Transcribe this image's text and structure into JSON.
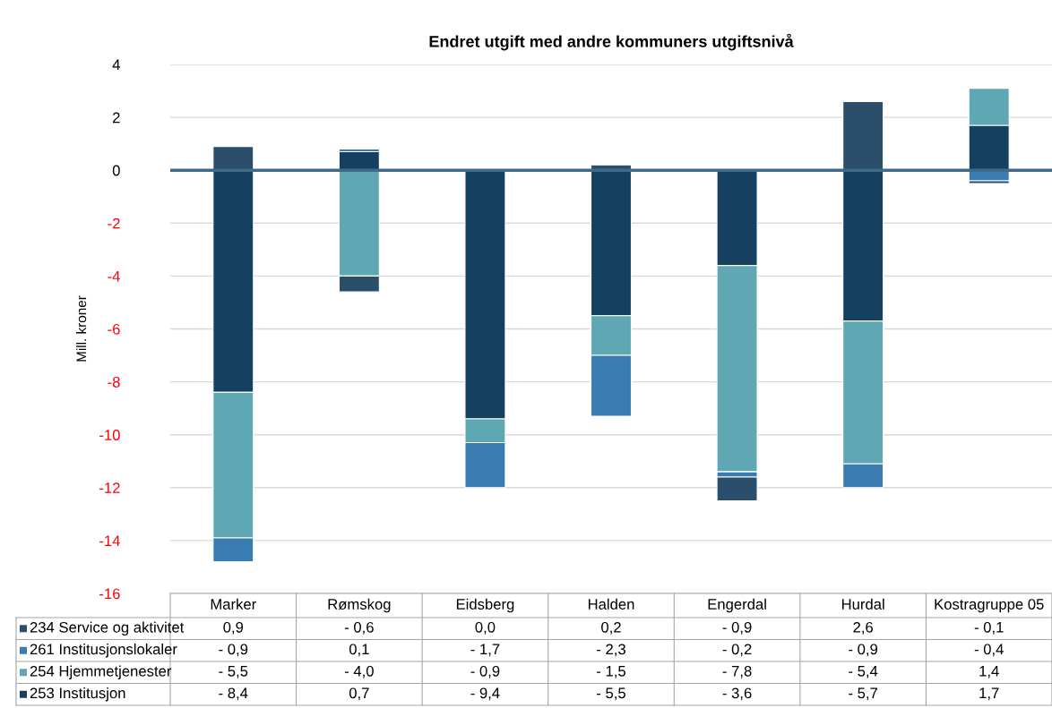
{
  "chart_data": {
    "type": "bar",
    "title": "Endret utgift med andre kommuners utgiftsnivå",
    "ylabel": "Mill. kroner",
    "categories": [
      "Marker",
      "Rømskog",
      "Eidsberg",
      "Halden",
      "Engerdal",
      "Hurdal",
      "Kostragruppe 05"
    ],
    "stacked": true,
    "legend": "bottom left",
    "ref_lines": [
      {
        "axis": "y",
        "value": 0,
        "color": "#3f6a8a"
      }
    ],
    "ylim": [
      -16,
      4
    ],
    "yticks": [
      -16,
      -14,
      -12,
      -10,
      -8,
      -6,
      -4,
      -2,
      0,
      2,
      4
    ],
    "grid": "y",
    "series": [
      {
        "name": "253 Institusjon",
        "color": "#16405f",
        "values": [
          -8.4,
          0.7,
          -9.4,
          -5.5,
          -3.6,
          -5.7,
          1.7
        ],
        "value_labels": [
          "- 8,4",
          "0,7",
          "- 9,4",
          "- 5,5",
          "- 3,6",
          "- 5,7",
          "1,7"
        ]
      },
      {
        "name": "254 Hjemmetjenester",
        "color": "#5fa8b3",
        "values": [
          -5.5,
          -4.0,
          -0.9,
          -1.5,
          -7.8,
          -5.4,
          1.4
        ],
        "value_labels": [
          "- 5,5",
          "- 4,0",
          "- 0,9",
          "- 1,5",
          "- 7,8",
          "- 5,4",
          "1,4"
        ]
      },
      {
        "name": "261 Institusjonslokaler",
        "color": "#3a7bb0",
        "values": [
          -0.9,
          0.1,
          -1.7,
          -2.3,
          -0.2,
          -0.9,
          -0.4
        ],
        "value_labels": [
          "- 0,9",
          "0,1",
          "- 1,7",
          "- 2,3",
          "- 0,2",
          "- 0,9",
          "- 0,4"
        ]
      },
      {
        "name": "234 Service og aktivitet",
        "color": "#2b4f6b",
        "values": [
          0.9,
          -0.6,
          0.0,
          0.2,
          -0.9,
          2.6,
          -0.1
        ],
        "value_labels": [
          "0,9",
          "- 0,6",
          "0,0",
          "0,2",
          "- 0,9",
          "2,6",
          "- 0,1"
        ]
      }
    ]
  }
}
